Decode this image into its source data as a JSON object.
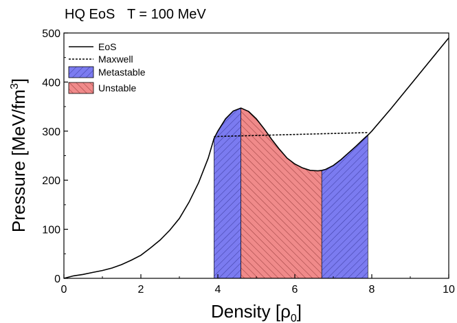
{
  "chart_data": {
    "type": "line",
    "title": "HQ EoS",
    "subtitle": "T = 100 MeV",
    "xlabel": "Density [ρ",
    "xlabel_sub": "0",
    "xlabel_close": "]",
    "ylabel": "Pressure [MeV/fm",
    "ylabel_sup": "3",
    "ylabel_close": "]",
    "xlim": [
      0,
      10
    ],
    "ylim": [
      0,
      500
    ],
    "xticks": [
      0,
      2,
      4,
      6,
      8,
      10
    ],
    "yticks": [
      0,
      100,
      200,
      300,
      400,
      500
    ],
    "grid": false,
    "legend_position": "top-left",
    "series": [
      {
        "name": "EoS",
        "style": "solid",
        "color": "#000000",
        "x": [
          0,
          0.25,
          0.5,
          0.75,
          1.0,
          1.25,
          1.5,
          1.75,
          2.0,
          2.25,
          2.5,
          2.75,
          3.0,
          3.25,
          3.5,
          3.75,
          3.9,
          4.0,
          4.2,
          4.4,
          4.6,
          4.8,
          5.0,
          5.2,
          5.4,
          5.6,
          5.8,
          6.0,
          6.2,
          6.4,
          6.6,
          6.7,
          6.8,
          7.0,
          7.2,
          7.4,
          7.6,
          7.8,
          7.9,
          8.0,
          8.5,
          9.0,
          9.5,
          10.0
        ],
        "y": [
          0,
          5,
          8,
          12,
          16,
          21,
          28,
          37,
          47,
          62,
          78,
          98,
          122,
          155,
          195,
          245,
          285,
          300,
          325,
          341,
          347,
          340,
          325,
          305,
          283,
          263,
          245,
          233,
          225,
          220,
          219,
          220,
          222,
          230,
          242,
          256,
          270,
          285,
          292,
          300,
          346,
          394,
          442,
          490
        ]
      },
      {
        "name": "Maxwell",
        "style": "dashed",
        "color": "#000000",
        "x": [
          3.9,
          7.9
        ],
        "y": [
          289,
          297
        ]
      }
    ],
    "regions": [
      {
        "name": "Metastable",
        "color": "#7b7bf0",
        "hatch": "#4444aa",
        "x_range": [
          3.9,
          4.6
        ]
      },
      {
        "name": "Unstable",
        "color": "#f08a8a",
        "hatch": "#a04444",
        "x_range": [
          4.6,
          6.7
        ]
      },
      {
        "name": "Metastable",
        "color": "#7b7bf0",
        "hatch": "#4444aa",
        "x_range": [
          6.7,
          7.9
        ]
      }
    ],
    "legend": [
      {
        "label": "EoS",
        "kind": "line-solid"
      },
      {
        "label": "Maxwell",
        "kind": "line-dashed"
      },
      {
        "label": "Metastable",
        "kind": "patch",
        "color": "#7b7bf0",
        "hatch": "#4444aa"
      },
      {
        "label": "Unstable",
        "kind": "patch",
        "color": "#f08a8a",
        "hatch": "#a04444"
      }
    ]
  }
}
